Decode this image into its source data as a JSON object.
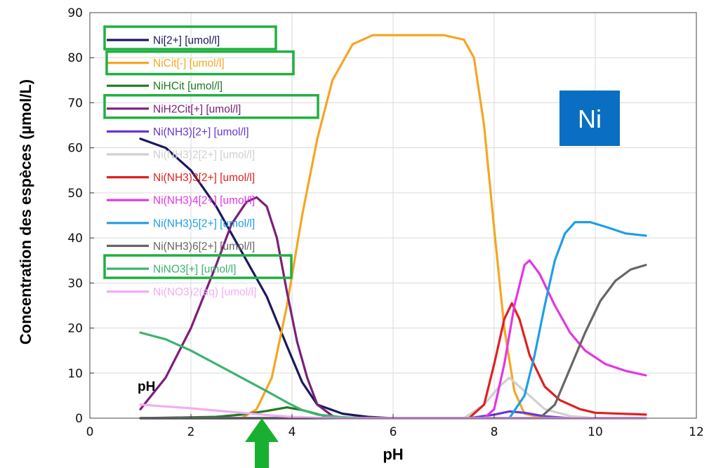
{
  "chart_data": {
    "type": "line",
    "xlabel": "pH",
    "ylabel": "Concentration des espèces (µmol/L)",
    "xlim": [
      0,
      12
    ],
    "ylim": [
      0,
      90
    ],
    "x_ticks": [
      "0",
      "2",
      "4",
      "6",
      "8",
      "10",
      "12"
    ],
    "y_ticks": [
      "0",
      "10",
      "20",
      "30",
      "40",
      "50",
      "60",
      "70",
      "80",
      "90"
    ],
    "grid": true,
    "legend_position": "top-left",
    "series": [
      {
        "name": "Ni[2+] [umol/l]",
        "color": "#1a1a5c",
        "highlighted": true,
        "points": [
          [
            1,
            62
          ],
          [
            1.5,
            60
          ],
          [
            2,
            55
          ],
          [
            2.5,
            47
          ],
          [
            3,
            37
          ],
          [
            3.5,
            27
          ],
          [
            3.9,
            16
          ],
          [
            4.2,
            8
          ],
          [
            4.5,
            3
          ],
          [
            5,
            1
          ],
          [
            5.5,
            0.3
          ],
          [
            6,
            0
          ],
          [
            11,
            0
          ]
        ]
      },
      {
        "name": "NiCit[-] [umol/l]",
        "color": "#f5a623",
        "highlighted": true,
        "points": [
          [
            1,
            0
          ],
          [
            2,
            0
          ],
          [
            3,
            0
          ],
          [
            3.3,
            2
          ],
          [
            3.6,
            9
          ],
          [
            3.9,
            25
          ],
          [
            4.2,
            45
          ],
          [
            4.5,
            62
          ],
          [
            4.8,
            75
          ],
          [
            5.2,
            83
          ],
          [
            5.6,
            85
          ],
          [
            6,
            85
          ],
          [
            7,
            85
          ],
          [
            7.4,
            84
          ],
          [
            7.6,
            80
          ],
          [
            7.8,
            65
          ],
          [
            8,
            42
          ],
          [
            8.2,
            20
          ],
          [
            8.4,
            6
          ],
          [
            8.6,
            1
          ],
          [
            9,
            0
          ],
          [
            11,
            0
          ]
        ]
      },
      {
        "name": "NiHCit [umol/l]",
        "color": "#1f7a1f",
        "highlighted": false,
        "points": [
          [
            1,
            0
          ],
          [
            2.5,
            0.3
          ],
          [
            3,
            0.8
          ],
          [
            3.5,
            1.6
          ],
          [
            3.9,
            2.4
          ],
          [
            4.2,
            1.8
          ],
          [
            4.6,
            0.6
          ],
          [
            5,
            0.2
          ],
          [
            5.5,
            0
          ],
          [
            11,
            0
          ]
        ]
      },
      {
        "name": "NiH2Cit[+] [umol/l]",
        "color": "#7b1f7b",
        "highlighted": true,
        "points": [
          [
            1,
            2
          ],
          [
            1.5,
            9
          ],
          [
            2,
            20
          ],
          [
            2.5,
            34
          ],
          [
            2.8,
            43
          ],
          [
            3.1,
            48
          ],
          [
            3.3,
            49
          ],
          [
            3.5,
            47
          ],
          [
            3.7,
            40
          ],
          [
            3.9,
            28
          ],
          [
            4.1,
            17
          ],
          [
            4.3,
            9
          ],
          [
            4.5,
            3
          ],
          [
            4.8,
            0.5
          ],
          [
            5,
            0
          ],
          [
            11,
            0
          ]
        ]
      },
      {
        "name": "Ni(NH3)[2+] [umol/l]",
        "color": "#6a35d6",
        "highlighted": false,
        "points": [
          [
            1,
            0
          ],
          [
            7.5,
            0
          ],
          [
            8,
            0.8
          ],
          [
            8.3,
            1.5
          ],
          [
            8.6,
            1.2
          ],
          [
            9,
            0.4
          ],
          [
            9.5,
            0
          ],
          [
            11,
            0
          ]
        ]
      },
      {
        "name": "Ni(NH3)2[2+] [umol/l]",
        "color": "#d0d0d0",
        "highlighted": false,
        "points": [
          [
            1,
            0
          ],
          [
            7.4,
            0
          ],
          [
            7.8,
            3
          ],
          [
            8.1,
            7
          ],
          [
            8.3,
            9
          ],
          [
            8.6,
            6
          ],
          [
            9,
            2
          ],
          [
            9.5,
            0.5
          ],
          [
            10,
            0
          ],
          [
            11,
            0
          ]
        ]
      },
      {
        "name": "Ni(NH3)3[2+] [umol/l]",
        "color": "#e02020",
        "highlighted": false,
        "points": [
          [
            1,
            0
          ],
          [
            7.5,
            0
          ],
          [
            7.8,
            3
          ],
          [
            8,
            12
          ],
          [
            8.2,
            22
          ],
          [
            8.35,
            25.5
          ],
          [
            8.5,
            22
          ],
          [
            8.7,
            14
          ],
          [
            9,
            7
          ],
          [
            9.3,
            4
          ],
          [
            9.7,
            2
          ],
          [
            10,
            1.2
          ],
          [
            11,
            0.8
          ]
        ]
      },
      {
        "name": "Ni(NH3)4[2+] [umol/l]",
        "color": "#e535e5",
        "highlighted": false,
        "points": [
          [
            1,
            0
          ],
          [
            7.8,
            0
          ],
          [
            8,
            2
          ],
          [
            8.2,
            12
          ],
          [
            8.4,
            25
          ],
          [
            8.6,
            34
          ],
          [
            8.7,
            35
          ],
          [
            8.9,
            32
          ],
          [
            9.2,
            25
          ],
          [
            9.5,
            19
          ],
          [
            9.8,
            15
          ],
          [
            10.2,
            12
          ],
          [
            10.6,
            10.5
          ],
          [
            11,
            9.5
          ]
        ]
      },
      {
        "name": "Ni(NH3)5[2+] [umol/l]",
        "color": "#1f9ee6",
        "highlighted": false,
        "points": [
          [
            1,
            0
          ],
          [
            8.3,
            0
          ],
          [
            8.6,
            5
          ],
          [
            8.8,
            14
          ],
          [
            9,
            25
          ],
          [
            9.2,
            35
          ],
          [
            9.4,
            41
          ],
          [
            9.6,
            43.5
          ],
          [
            9.9,
            43.5
          ],
          [
            10.2,
            42.5
          ],
          [
            10.6,
            41
          ],
          [
            11,
            40.5
          ]
        ]
      },
      {
        "name": "Ni(NH3)6[2+] [umol/l]",
        "color": "#666666",
        "highlighted": false,
        "points": [
          [
            1,
            0
          ],
          [
            8.9,
            0
          ],
          [
            9.2,
            3
          ],
          [
            9.5,
            11
          ],
          [
            9.8,
            19
          ],
          [
            10.1,
            26
          ],
          [
            10.4,
            30.5
          ],
          [
            10.7,
            33
          ],
          [
            11,
            34
          ]
        ]
      },
      {
        "name": "NiNO3[+] [umol/l]",
        "color": "#3cb371",
        "highlighted": true,
        "points": [
          [
            1,
            19
          ],
          [
            1.5,
            17.5
          ],
          [
            2,
            15
          ],
          [
            2.5,
            12
          ],
          [
            3,
            9
          ],
          [
            3.5,
            6
          ],
          [
            3.9,
            3.5
          ],
          [
            4.2,
            1.8
          ],
          [
            4.5,
            0.8
          ],
          [
            5,
            0.2
          ],
          [
            5.5,
            0
          ],
          [
            11,
            0
          ]
        ]
      },
      {
        "name": "Ni(NO3)2(aq) [umol/l]",
        "color": "#f2aef2",
        "highlighted": false,
        "points": [
          [
            1,
            3
          ],
          [
            1.5,
            2.6
          ],
          [
            2,
            2.2
          ],
          [
            2.5,
            1.7
          ],
          [
            3,
            1.2
          ],
          [
            3.5,
            0.7
          ],
          [
            4,
            0.3
          ],
          [
            4.5,
            0.1
          ],
          [
            5,
            0
          ],
          [
            11,
            0
          ]
        ]
      }
    ],
    "annotations": {
      "element_badge": "Ni",
      "badge_color": "#0a6fc2",
      "ph_marker_label": "pH",
      "arrow_color": "#19b032",
      "highlight_box_color": "#20b040"
    }
  }
}
